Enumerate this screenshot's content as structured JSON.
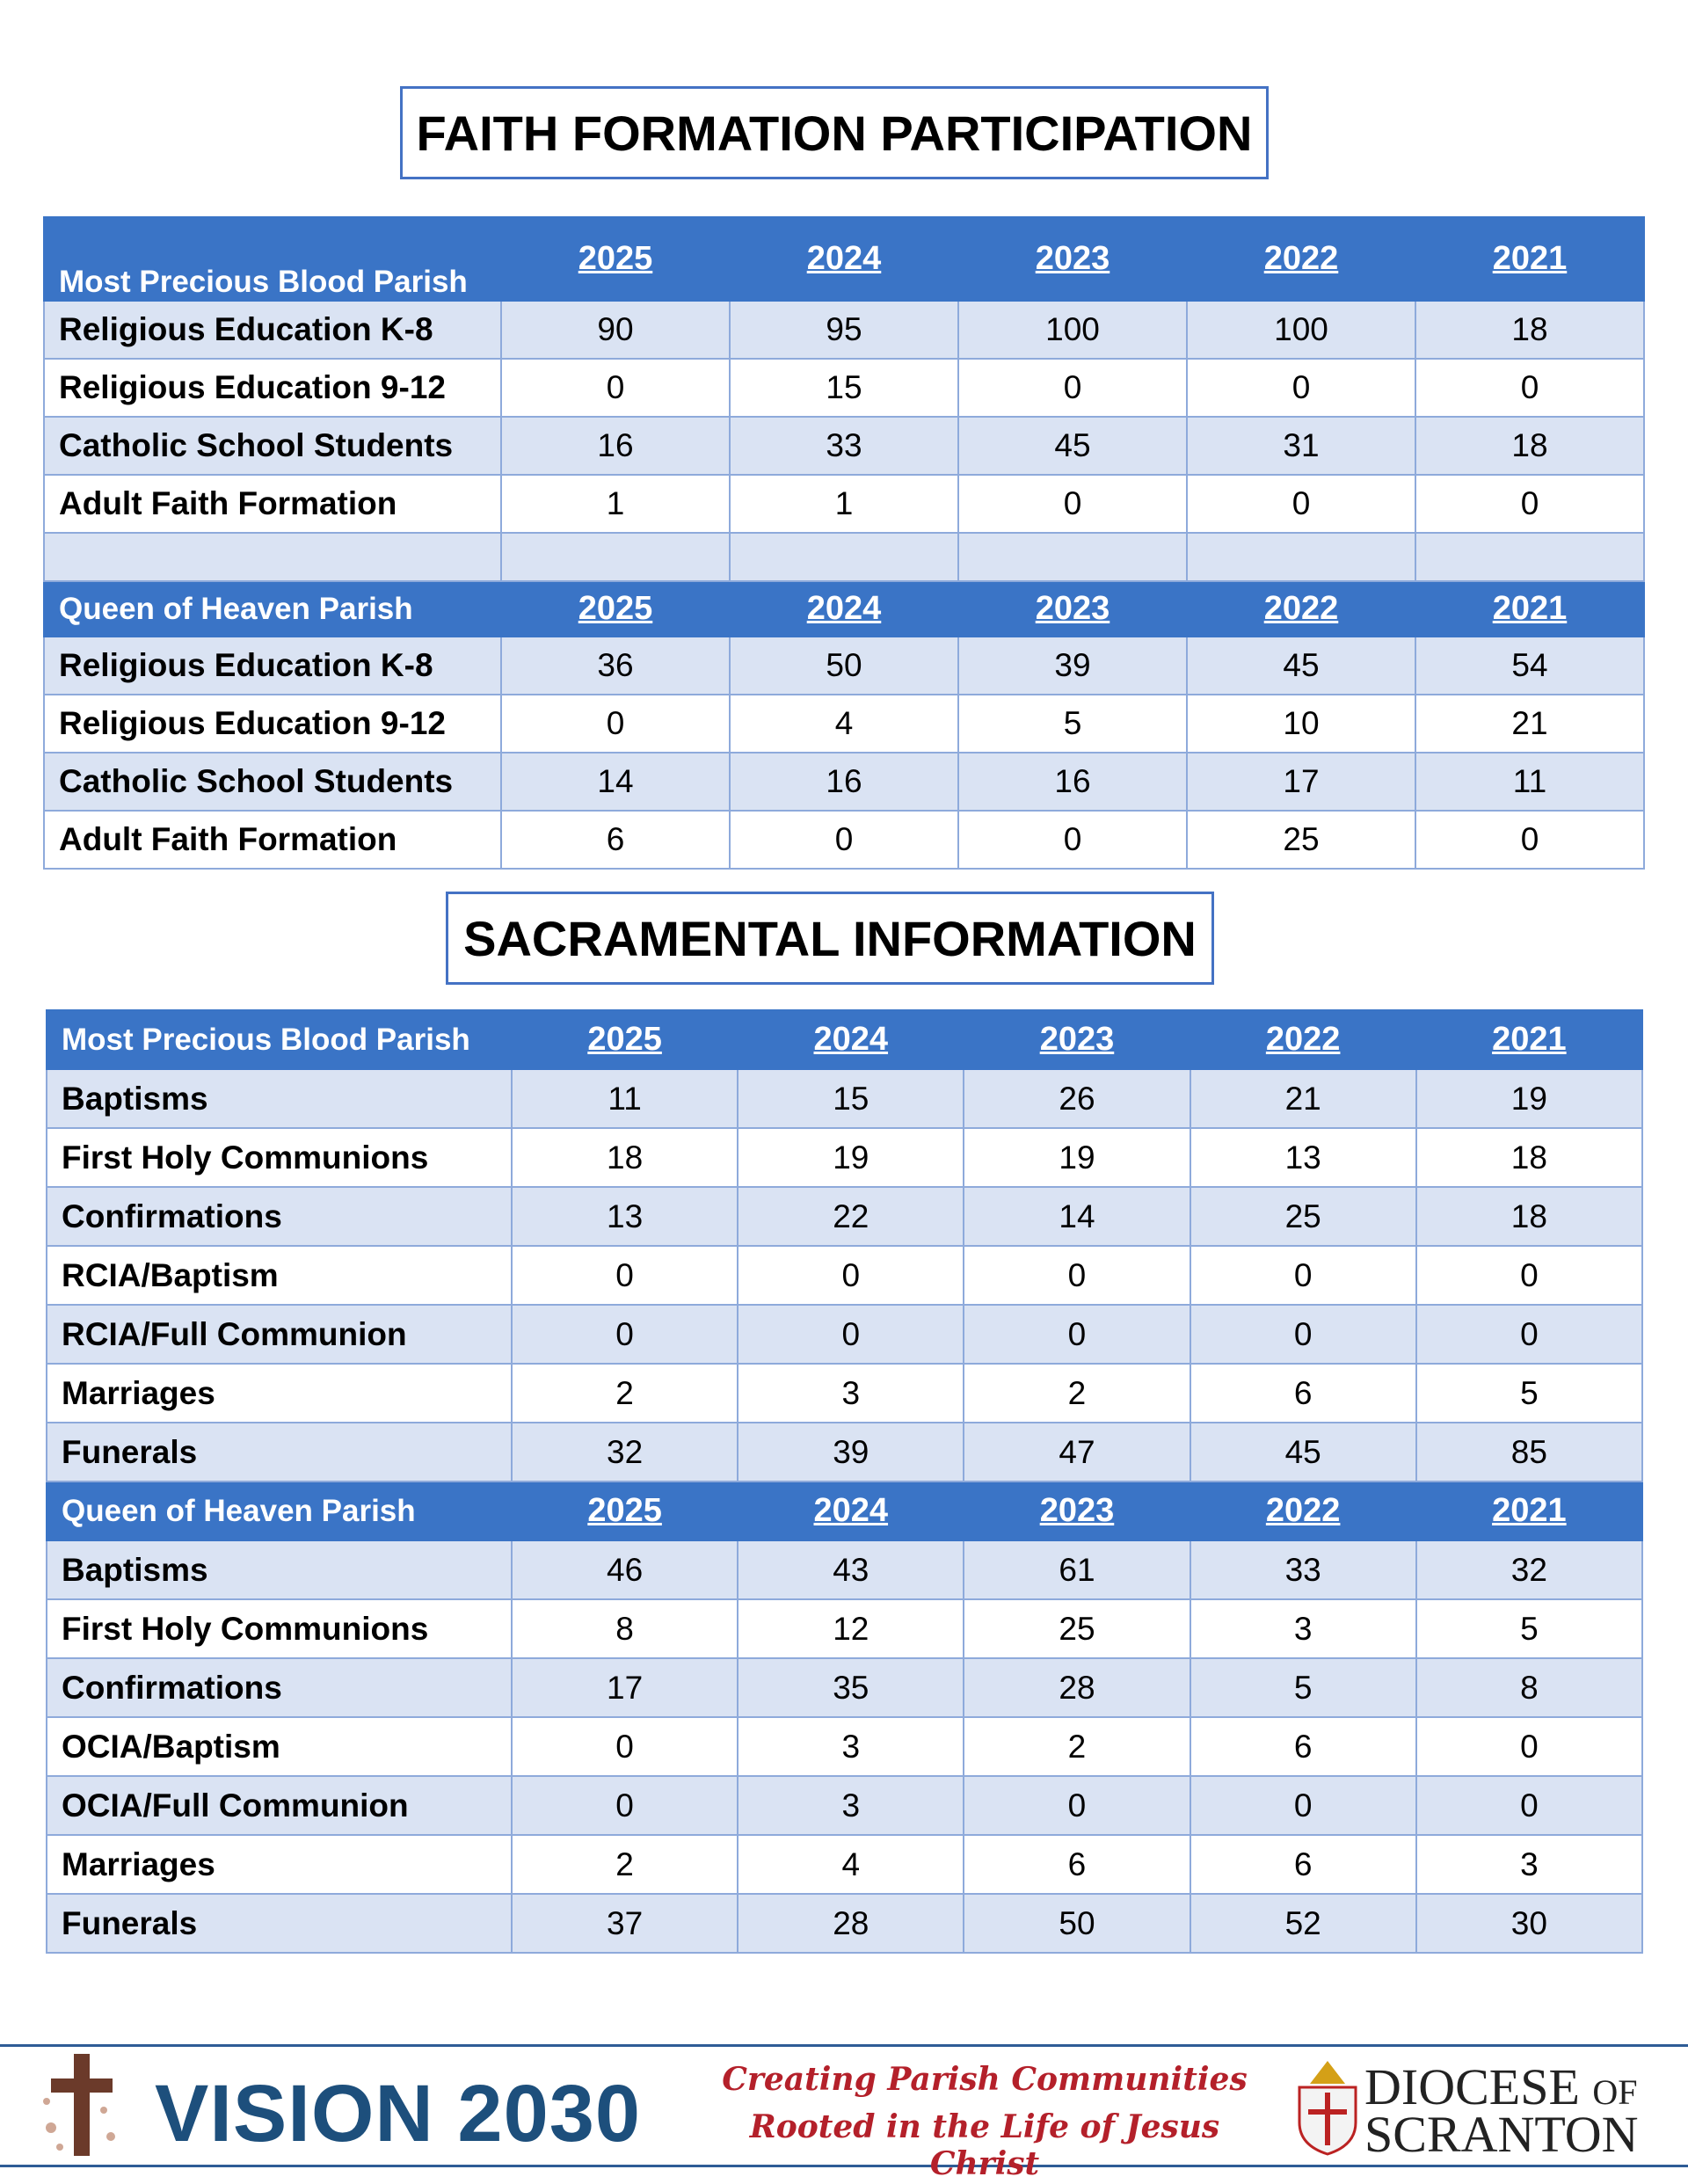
{
  "faith_formation": {
    "title": "FAITH FORMATION PARTICIPATION",
    "sections": [
      {
        "parish": "Most Precious Blood Parish",
        "years": [
          2025,
          2024,
          2023,
          2022,
          2021
        ],
        "rows": [
          {
            "label": "Religious Education K-8",
            "values": [
              90,
              95,
              100,
              100,
              18
            ]
          },
          {
            "label": "Religious Education 9-12",
            "values": [
              0,
              15,
              0,
              0,
              0
            ]
          },
          {
            "label": "Catholic School Students",
            "values": [
              16,
              33,
              45,
              31,
              18
            ]
          },
          {
            "label": "Adult Faith Formation",
            "values": [
              1,
              1,
              0,
              0,
              0
            ]
          }
        ]
      },
      {
        "parish": "Queen of Heaven Parish",
        "years": [
          2025,
          2024,
          2023,
          2022,
          2021
        ],
        "rows": [
          {
            "label": "Religious Education K-8",
            "values": [
              36,
              50,
              39,
              45,
              54
            ]
          },
          {
            "label": "Religious Education 9-12",
            "values": [
              0,
              4,
              5,
              10,
              21
            ]
          },
          {
            "label": "Catholic School Students",
            "values": [
              14,
              16,
              16,
              17,
              11
            ]
          },
          {
            "label": "Adult Faith Formation",
            "values": [
              6,
              0,
              0,
              25,
              0
            ]
          }
        ]
      }
    ]
  },
  "sacramental": {
    "title": "SACRAMENTAL INFORMATION",
    "sections": [
      {
        "parish": "Most Precious Blood Parish",
        "years": [
          2025,
          2024,
          2023,
          2022,
          2021
        ],
        "rows": [
          {
            "label": "Baptisms",
            "values": [
              11,
              15,
              26,
              21,
              19
            ]
          },
          {
            "label": "First Holy Communions",
            "values": [
              18,
              19,
              19,
              13,
              18
            ]
          },
          {
            "label": "Confirmations",
            "values": [
              13,
              22,
              14,
              25,
              18
            ]
          },
          {
            "label": "RCIA/Baptism",
            "values": [
              0,
              0,
              0,
              0,
              0
            ]
          },
          {
            "label": "RCIA/Full Communion",
            "values": [
              0,
              0,
              0,
              0,
              0
            ]
          },
          {
            "label": "Marriages",
            "values": [
              2,
              3,
              2,
              6,
              5
            ]
          },
          {
            "label": "Funerals",
            "values": [
              32,
              39,
              47,
              45,
              85
            ]
          }
        ]
      },
      {
        "parish": "Queen of Heaven Parish",
        "years": [
          2025,
          2024,
          2023,
          2022,
          2021
        ],
        "rows": [
          {
            "label": "Baptisms",
            "values": [
              46,
              43,
              61,
              33,
              32
            ]
          },
          {
            "label": "First Holy Communions",
            "values": [
              8,
              12,
              25,
              3,
              5
            ]
          },
          {
            "label": "Confirmations",
            "values": [
              17,
              35,
              28,
              5,
              8
            ]
          },
          {
            "label": "OCIA/Baptism",
            "values": [
              0,
              3,
              2,
              6,
              0
            ]
          },
          {
            "label": "OCIA/Full Communion",
            "values": [
              0,
              3,
              0,
              0,
              0
            ]
          },
          {
            "label": "Marriages",
            "values": [
              2,
              4,
              6,
              6,
              3
            ]
          },
          {
            "label": "Funerals",
            "values": [
              37,
              28,
              50,
              52,
              30
            ]
          }
        ]
      }
    ]
  },
  "footer": {
    "vision": "VISION 2030",
    "tagline": [
      "Creating Parish Communities",
      "Rooted in the Life of Jesus Christ"
    ],
    "diocese": {
      "line1": "DIOCESE",
      "of": "OF",
      "line2": "SCRANTON"
    }
  }
}
